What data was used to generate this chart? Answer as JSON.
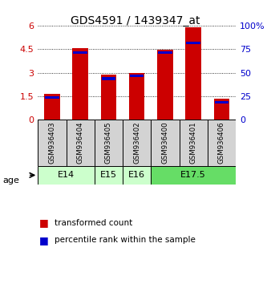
{
  "title": "GDS4591 / 1439347_at",
  "samples": [
    "GSM936403",
    "GSM936404",
    "GSM936405",
    "GSM936402",
    "GSM936400",
    "GSM936401",
    "GSM936406"
  ],
  "transformed_count": [
    1.65,
    4.55,
    2.85,
    2.98,
    4.45,
    5.9,
    1.35
  ],
  "percentile_rank": [
    25,
    73,
    45,
    48,
    73,
    83,
    20
  ],
  "age_groups": [
    {
      "label": "E14",
      "start": 0,
      "end": 2,
      "color": "#ccffcc"
    },
    {
      "label": "E15",
      "start": 2,
      "end": 3,
      "color": "#ccffcc"
    },
    {
      "label": "E16",
      "start": 3,
      "end": 4,
      "color": "#ccffcc"
    },
    {
      "label": "E17.5",
      "start": 4,
      "end": 7,
      "color": "#66dd66"
    }
  ],
  "bar_color_red": "#cc0000",
  "bar_color_blue": "#0000cc",
  "ylim_left": [
    0,
    6
  ],
  "ylim_right": [
    0,
    100
  ],
  "yticks_left": [
    0,
    1.5,
    3,
    4.5,
    6
  ],
  "yticks_right": [
    0,
    25,
    50,
    75,
    100
  ],
  "background_color": "#ffffff",
  "sample_box_color": "#d3d3d3",
  "bar_width": 0.55
}
